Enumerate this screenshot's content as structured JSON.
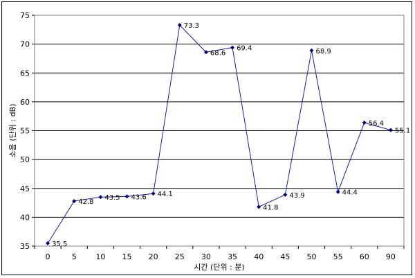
{
  "chart_data": {
    "type": "line",
    "categories": [
      "0",
      "5",
      "10",
      "15",
      "20",
      "25",
      "30",
      "35",
      "40",
      "45",
      "50",
      "55",
      "60",
      "90"
    ],
    "series": [
      {
        "values": [
          35.5,
          42.8,
          43.5,
          43.6,
          44.1,
          73.3,
          68.6,
          69.4,
          41.8,
          43.9,
          68.9,
          44.4,
          56.4,
          55.1
        ],
        "labels": [
          "35.5",
          "42.8",
          "43.5",
          "43.6",
          "44.1",
          "73.3",
          "68.6",
          "69.4",
          "41.8",
          "43.9",
          "68.9",
          "44.4",
          "56.4",
          "55.1"
        ],
        "color": "#1a1aa6"
      }
    ],
    "xlabel": "시간 (단위 : 분)",
    "ylabel": "소음 (단위 : dB)",
    "ylim": [
      35,
      75
    ],
    "yticks": [
      35,
      40,
      45,
      50,
      55,
      60,
      65,
      70,
      75
    ],
    "grid": true,
    "legend": "none"
  }
}
